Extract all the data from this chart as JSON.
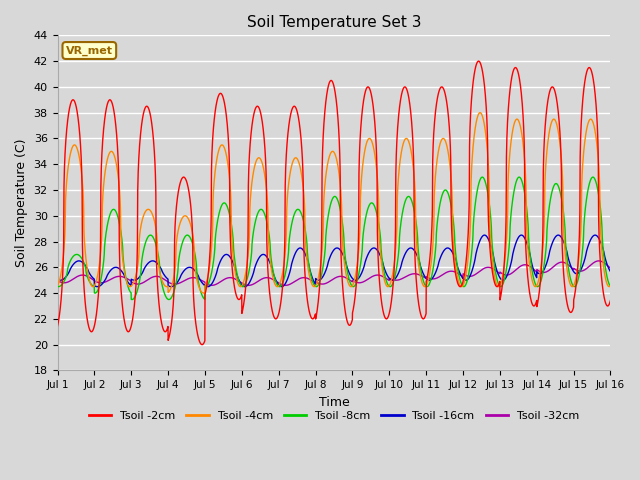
{
  "title": "Soil Temperature Set 3",
  "xlabel": "Time",
  "ylabel": "Soil Temperature (C)",
  "ylim": [
    18,
    44
  ],
  "yticks": [
    18,
    20,
    22,
    24,
    26,
    28,
    30,
    32,
    34,
    36,
    38,
    40,
    42,
    44
  ],
  "xlim": [
    0,
    15
  ],
  "xtick_labels": [
    "Jul 1",
    "Jul 2",
    "Jul 3",
    "Jul 4",
    "Jul 5",
    "Jul 6",
    "Jul 7",
    "Jul 8",
    "Jul 9",
    "Jul 10",
    "Jul 11",
    "Jul 12",
    "Jul 13",
    "Jul 14",
    "Jul 15",
    "Jul 16"
  ],
  "background_color": "#d8d8d8",
  "plot_bg_color": "#d8d8d8",
  "grid_color": "#ffffff",
  "series": [
    {
      "label": "Tsoil -2cm",
      "color": "#ff0000"
    },
    {
      "label": "Tsoil -4cm",
      "color": "#ff8800"
    },
    {
      "label": "Tsoil -8cm",
      "color": "#00cc00"
    },
    {
      "label": "Tsoil -16cm",
      "color": "#0000cc"
    },
    {
      "label": "Tsoil -32cm",
      "color": "#aa00aa"
    }
  ],
  "annotation_text": "VR_met",
  "annotation_bg": "#ffffcc",
  "annotation_border": "#996600",
  "n_points_per_day": 240,
  "n_days": 15,
  "peak_2cm": [
    39.0,
    39.0,
    38.5,
    33.0,
    39.5,
    38.5,
    38.5,
    40.5,
    40.0,
    40.0,
    40.0,
    42.0,
    41.5,
    40.0,
    41.5
  ],
  "trough_2cm": [
    21.0,
    21.0,
    21.0,
    20.0,
    23.5,
    22.0,
    22.0,
    21.5,
    22.0,
    22.0,
    24.5,
    24.5,
    23.0,
    22.5,
    23.0
  ],
  "peak_4cm": [
    35.5,
    35.0,
    30.5,
    30.0,
    35.5,
    34.5,
    34.5,
    35.0,
    36.0,
    36.0,
    36.0,
    38.0,
    37.5,
    37.5,
    37.5
  ],
  "trough_4cm": [
    24.5,
    24.5,
    24.5,
    24.0,
    24.5,
    24.5,
    24.5,
    24.5,
    24.5,
    24.5,
    24.5,
    24.5,
    24.5,
    24.5,
    24.5
  ],
  "peak_8cm": [
    27.0,
    30.5,
    28.5,
    28.5,
    31.0,
    30.5,
    30.5,
    31.5,
    31.0,
    31.5,
    32.0,
    33.0,
    33.0,
    32.5,
    33.0
  ],
  "trough_8cm": [
    24.5,
    24.0,
    23.5,
    23.5,
    24.5,
    24.5,
    24.5,
    24.5,
    24.5,
    24.5,
    24.5,
    24.5,
    24.5,
    24.5,
    24.5
  ],
  "peak_16cm": [
    26.5,
    26.0,
    26.5,
    26.0,
    27.0,
    27.0,
    27.5,
    27.5,
    27.5,
    27.5,
    27.5,
    28.5,
    28.5,
    28.5,
    28.5
  ],
  "trough_16cm": [
    25.0,
    24.5,
    25.0,
    24.5,
    24.5,
    24.5,
    24.5,
    25.0,
    25.0,
    25.0,
    25.0,
    25.0,
    25.0,
    25.5,
    25.5
  ],
  "peak_32cm": [
    25.4,
    25.3,
    25.3,
    25.2,
    25.2,
    25.2,
    25.2,
    25.3,
    25.4,
    25.5,
    25.7,
    26.0,
    26.2,
    26.4,
    26.5
  ],
  "trough_32cm": [
    24.8,
    24.8,
    24.7,
    24.7,
    24.6,
    24.6,
    24.6,
    24.7,
    24.8,
    25.0,
    25.1,
    25.3,
    25.4,
    25.6,
    25.7
  ],
  "phase_peak_2cm": 0.42,
  "phase_peak_4cm": 0.46,
  "phase_peak_8cm": 0.52,
  "phase_peak_16cm": 0.58,
  "phase_peak_32cm": 0.68
}
